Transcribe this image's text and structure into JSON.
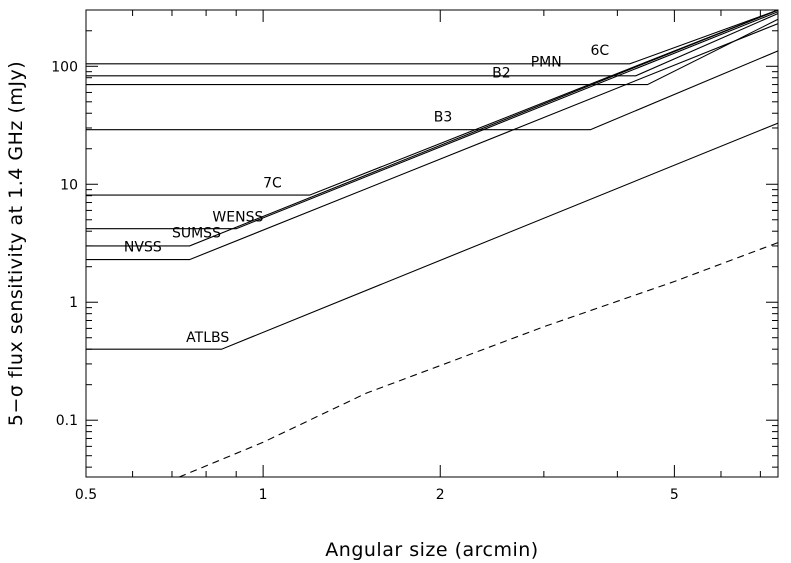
{
  "chart_data": {
    "type": "line",
    "xlabel": "Angular size (arcmin)",
    "ylabel": "5−σ flux sensitivity at 1.4 GHz (mJy)",
    "xscale": "log",
    "yscale": "log",
    "xlim": [
      0.5,
      7.5
    ],
    "ylim": [
      0.033,
      300
    ],
    "grid": false,
    "xticks": [
      {
        "value": 0.5,
        "label": "0.5"
      },
      {
        "value": 1,
        "label": "1"
      },
      {
        "value": 2,
        "label": "2"
      },
      {
        "value": 5,
        "label": "5"
      }
    ],
    "yticks": [
      {
        "value": 0.1,
        "label": "0.1"
      },
      {
        "value": 1,
        "label": "1"
      },
      {
        "value": 10,
        "label": "10"
      },
      {
        "value": 100,
        "label": "100"
      }
    ],
    "series": [
      {
        "name": "6C",
        "style": "solid",
        "points": [
          [
            0.5,
            105
          ],
          [
            4.2,
            105
          ],
          [
            7.5,
            300
          ]
        ]
      },
      {
        "name": "PMN",
        "style": "solid",
        "points": [
          [
            0.5,
            83
          ],
          [
            4.3,
            83
          ],
          [
            7.5,
            280
          ]
        ]
      },
      {
        "name": "B2",
        "style": "solid",
        "points": [
          [
            0.5,
            70
          ],
          [
            4.5,
            70
          ],
          [
            7.5,
            250
          ]
        ]
      },
      {
        "name": "B3",
        "style": "solid",
        "points": [
          [
            0.5,
            29
          ],
          [
            3.6,
            29
          ],
          [
            7.5,
            135
          ]
        ]
      },
      {
        "name": "7C",
        "style": "solid",
        "points": [
          [
            0.5,
            8.1
          ],
          [
            1.2,
            8.1
          ],
          [
            7.5,
            300
          ]
        ]
      },
      {
        "name": "WENSS",
        "style": "solid",
        "points": [
          [
            0.5,
            4.2
          ],
          [
            0.9,
            4.2
          ],
          [
            7.5,
            290
          ]
        ]
      },
      {
        "name": "SUMSS",
        "style": "solid",
        "points": [
          [
            0.5,
            3.0
          ],
          [
            0.75,
            3.0
          ],
          [
            7.5,
            300
          ]
        ]
      },
      {
        "name": "NVSS",
        "style": "solid",
        "points": [
          [
            0.5,
            2.3
          ],
          [
            0.75,
            2.3
          ],
          [
            7.5,
            230
          ]
        ]
      },
      {
        "name": "ATLBS",
        "style": "solid",
        "points": [
          [
            0.5,
            0.4
          ],
          [
            0.85,
            0.4
          ],
          [
            7.5,
            33
          ]
        ]
      },
      {
        "name": "",
        "style": "dashed",
        "points": [
          [
            0.72,
            0.033
          ],
          [
            1.0,
            0.065
          ],
          [
            1.5,
            0.17
          ],
          [
            2.0,
            0.29
          ],
          [
            3.0,
            0.62
          ],
          [
            5.0,
            1.5
          ],
          [
            7.5,
            3.2
          ]
        ]
      }
    ],
    "annotations": [
      {
        "text": "6C",
        "x": 3.6,
        "y": 125
      },
      {
        "text": "PMN",
        "x": 2.85,
        "y": 100
      },
      {
        "text": "B2",
        "x": 2.45,
        "y": 80
      },
      {
        "text": "B3",
        "x": 1.95,
        "y": 34
      },
      {
        "text": "7C",
        "x": 1.0,
        "y": 9.4
      },
      {
        "text": "WENSS",
        "x": 0.82,
        "y": 4.85
      },
      {
        "text": "SUMSS",
        "x": 0.7,
        "y": 3.55
      },
      {
        "text": "NVSS",
        "x": 0.58,
        "y": 2.7
      },
      {
        "text": "ATLBS",
        "x": 0.74,
        "y": 0.46
      }
    ]
  }
}
